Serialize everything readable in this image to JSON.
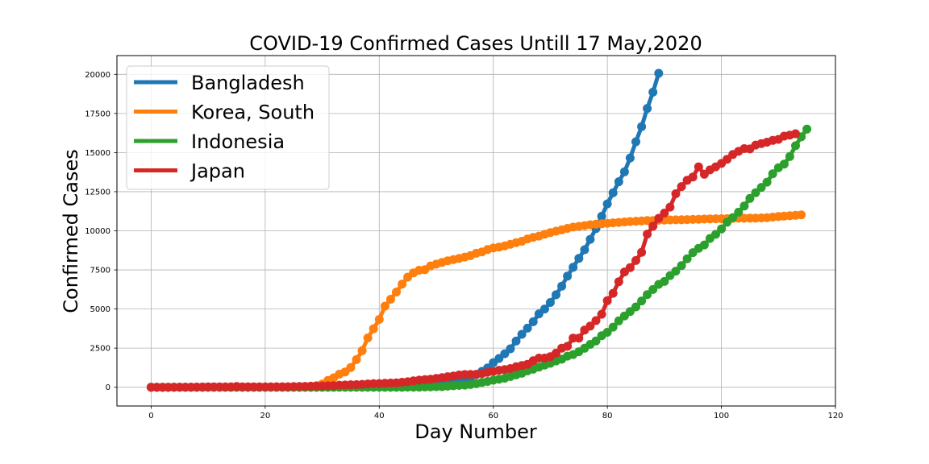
{
  "chart_data": {
    "type": "line",
    "title": "COVID-19 Confirmed Cases Untill 17 May,2020",
    "xlabel": "Day Number",
    "ylabel": "Confirmed Cases",
    "xlim": [
      -6,
      120
    ],
    "ylim": [
      -1200,
      21200
    ],
    "xticks": [
      0,
      20,
      40,
      60,
      80,
      100,
      120
    ],
    "yticks": [
      0,
      2500,
      5000,
      7500,
      10000,
      12500,
      15000,
      17500,
      20000
    ],
    "grid": true,
    "legend_position": "upper-left",
    "series": [
      {
        "name": "Bangladesh",
        "color": "#1f77b4",
        "start_day": 0,
        "values": [
          0,
          0,
          0,
          0,
          0,
          0,
          0,
          0,
          0,
          0,
          0,
          0,
          0,
          0,
          0,
          0,
          0,
          0,
          0,
          0,
          0,
          0,
          0,
          0,
          0,
          0,
          0,
          0,
          0,
          0,
          3,
          3,
          5,
          8,
          10,
          14,
          17,
          20,
          24,
          27,
          33,
          39,
          44,
          48,
          49,
          54,
          56,
          61,
          70,
          88,
          123,
          164,
          218,
          330,
          424,
          482,
          621,
          803,
          1012,
          1231,
          1572,
          1838,
          2144,
          2456,
          2948,
          3382,
          3772,
          4186,
          4689,
          4998,
          5416,
          5913,
          6462,
          7103,
          7667,
          8238,
          8790,
          9455,
          10143,
          10929,
          11719,
          12425,
          13134,
          13770,
          14657,
          15691,
          16660,
          17822,
          18863,
          20065
        ]
      },
      {
        "name": "Korea, South",
        "color": "#ff7f0e",
        "start_day": 0,
        "values": [
          1,
          1,
          2,
          2,
          3,
          4,
          4,
          4,
          4,
          11,
          12,
          15,
          15,
          16,
          19,
          23,
          24,
          24,
          25,
          27,
          28,
          28,
          28,
          28,
          28,
          29,
          30,
          31,
          31,
          104,
          204,
          433,
          602,
          833,
          977,
          1261,
          1766,
          2337,
          3150,
          3736,
          4335,
          5186,
          5621,
          6088,
          6593,
          7041,
          7314,
          7478,
          7513,
          7755,
          7869,
          7979,
          8086,
          8162,
          8236,
          8320,
          8413,
          8565,
          8652,
          8799,
          8897,
          8961,
          9037,
          9137,
          9241,
          9332,
          9478,
          9583,
          9661,
          9786,
          9887,
          9976,
          10062,
          10156,
          10237,
          10284,
          10331,
          10384,
          10423,
          10450,
          10480,
          10512,
          10537,
          10564,
          10591,
          10613,
          10635,
          10653,
          10661,
          10674,
          10683,
          10694,
          10702,
          10708,
          10718,
          10728,
          10738,
          10752,
          10761,
          10765,
          10774,
          10780,
          10793,
          10801,
          10804,
          10806,
          10810,
          10822,
          10840,
          10874,
          10909,
          10936,
          10962,
          10991,
          11018
        ]
      },
      {
        "name": "Indonesia",
        "color": "#2ca02c",
        "start_day": 0,
        "values": [
          0,
          0,
          0,
          0,
          0,
          0,
          0,
          0,
          0,
          0,
          0,
          0,
          0,
          0,
          0,
          0,
          0,
          0,
          0,
          0,
          0,
          0,
          0,
          0,
          0,
          0,
          0,
          0,
          0,
          0,
          0,
          0,
          0,
          0,
          0,
          0,
          0,
          0,
          0,
          0,
          0,
          2,
          2,
          2,
          2,
          4,
          4,
          6,
          19,
          27,
          34,
          34,
          69,
          96,
          117,
          134,
          172,
          227,
          309,
          369,
          450,
          514,
          579,
          686,
          790,
          893,
          1046,
          1155,
          1285,
          1414,
          1528,
          1677,
          1790,
          1986,
          2092,
          2273,
          2491,
          2738,
          2956,
          3293,
          3512,
          3842,
          4241,
          4557,
          4839,
          5136,
          5516,
          5923,
          6248,
          6575,
          6760,
          7135,
          7418,
          7775,
          8211,
          8607,
          8882,
          9096,
          9511,
          9771,
          10118,
          10551,
          10843,
          11192,
          11587,
          12071,
          12438,
          12776,
          13112,
          13645,
          14032,
          14265,
          14749,
          15438,
          16006,
          16496
        ]
      },
      {
        "name": "Japan",
        "color": "#d62728",
        "start_day": 0,
        "values": [
          2,
          2,
          2,
          2,
          4,
          4,
          7,
          7,
          11,
          15,
          20,
          20,
          20,
          22,
          22,
          45,
          25,
          25,
          26,
          26,
          26,
          28,
          29,
          29,
          33,
          41,
          53,
          59,
          66,
          73,
          84,
          93,
          105,
          132,
          144,
          157,
          164,
          186,
          210,
          230,
          239,
          254,
          268,
          284,
          317,
          349,
          408,
          455,
          488,
          514,
          568,
          620,
          675,
          716,
          780,
          814,
          824,
          829,
          873,
          950,
          1007,
          1086,
          1128,
          1193,
          1307,
          1387,
          1468,
          1693,
          1866,
          1866,
          1953,
          2178,
          2495,
          2617,
          3139,
          3139,
          3654,
          3906,
          4257,
          4667,
          5530,
          6005,
          6748,
          7370,
          7645,
          8100,
          8626,
          9787,
          10296,
          10797,
          11135,
          11512,
          12368,
          12829,
          13231,
          13441,
          14088,
          13614,
          13895,
          14088,
          14305,
          14571,
          14877,
          15078,
          15253,
          15231,
          15477,
          15575,
          15663,
          15777,
          15847,
          16049,
          16120,
          16203
        ]
      }
    ]
  }
}
